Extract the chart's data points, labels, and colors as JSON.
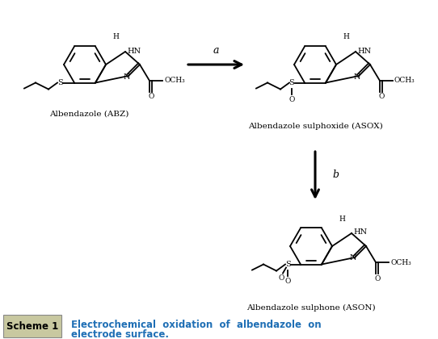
{
  "background_color": "#ffffff",
  "scheme_label": "Scheme 1",
  "scheme_label_bg": "#c8c8a0",
  "scheme_text_line1": "Electrochemical  oxidation  of  albendazole  on",
  "scheme_text_line2": "electrode surface.",
  "scheme_text_color": "#1f6fb5",
  "label_abz": "Albendazole (ABZ)",
  "label_asox": "Albendazole sulphoxide (ASOX)",
  "label_ason": "Albendazole sulphone (ASON)",
  "arrow_a_label": "a",
  "arrow_b_label": "b",
  "fig_width": 5.42,
  "fig_height": 4.2,
  "dpi": 100
}
